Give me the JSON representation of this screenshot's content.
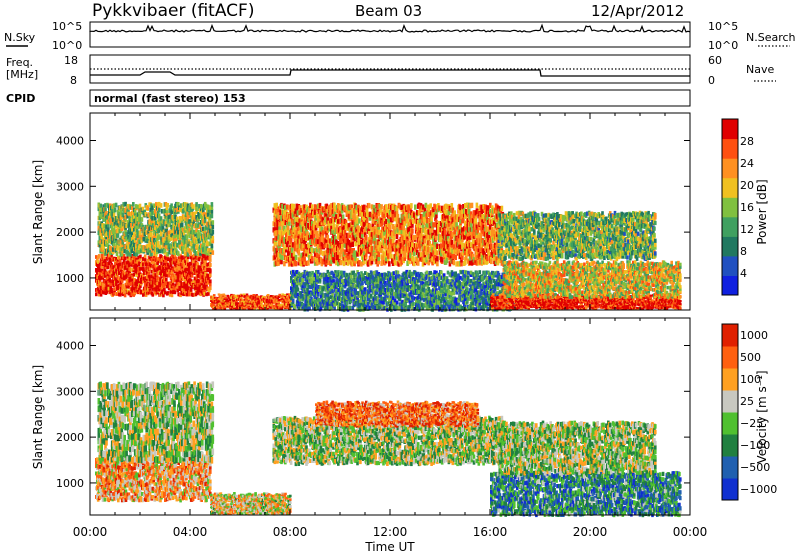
{
  "header": {
    "title": "Pykkvibaer (fitACF)",
    "beam": "Beam 03",
    "date": "12/Apr/2012"
  },
  "noise_panel": {
    "left_label": "N.Sky",
    "left_ticks": [
      "10^5",
      "10^0"
    ],
    "right_label": "N.Search",
    "right_ticks": [
      "10^5",
      "10^0"
    ]
  },
  "freq_panel": {
    "left_label_1": "Freq.",
    "left_label_2": "[MHz]",
    "left_ticks": [
      "18",
      "8"
    ],
    "right_label": "Nave",
    "right_ticks": [
      "60",
      "0"
    ]
  },
  "cpid": {
    "label": "CPID",
    "value": "normal (fast stereo) 153"
  },
  "colors": {
    "power_scale": [
      "#1020e0",
      "#2050c0",
      "#207860",
      "#40a060",
      "#80c040",
      "#f0c020",
      "#ff9020",
      "#ff5010",
      "#e00000"
    ],
    "velocity_scale": [
      "#1030d0",
      "#2060b0",
      "#208040",
      "#50c030",
      "#c8c8c0",
      "#ffa020",
      "#ff6010",
      "#e02000"
    ]
  },
  "chart_data": [
    {
      "type": "heatmap",
      "name": "power",
      "xlabel": "",
      "ylabel": "Slant Range [km]",
      "x_ticks": [
        "00:00",
        "04:00",
        "08:00",
        "12:00",
        "16:00",
        "20:00",
        "00:00"
      ],
      "y_ticks": [
        "1000",
        "2000",
        "3000",
        "4000"
      ],
      "ylim": [
        300,
        4600
      ],
      "colorbar_label": "Power [dB]",
      "colorbar_ticks": [
        "4",
        "8",
        "12",
        "16",
        "20",
        "24",
        "28"
      ],
      "regions": [
        {
          "t0": 0.2,
          "t1": 4.8,
          "r0": 700,
          "r1": 1550,
          "level": 0.9
        },
        {
          "t0": 0.3,
          "t1": 4.9,
          "r0": 1600,
          "r1": 2700,
          "level": 0.5
        },
        {
          "t0": 4.8,
          "t1": 8.0,
          "r0": 300,
          "r1": 650,
          "level": 0.85
        },
        {
          "t0": 7.3,
          "t1": 16.5,
          "r0": 1400,
          "r1": 2700,
          "level": 0.75
        },
        {
          "t0": 8.0,
          "t1": 17.0,
          "r0": 300,
          "r1": 1200,
          "level": 0.3
        },
        {
          "t0": 16.0,
          "t1": 23.6,
          "r0": 300,
          "r1": 650,
          "level": 0.95
        },
        {
          "t0": 16.5,
          "t1": 23.6,
          "r0": 650,
          "r1": 1400,
          "level": 0.6
        },
        {
          "t0": 16.3,
          "t1": 22.6,
          "r0": 1500,
          "r1": 2500,
          "level": 0.45
        }
      ]
    },
    {
      "type": "heatmap",
      "name": "velocity",
      "xlabel": "Time UT",
      "ylabel": "Slant Range [km]",
      "x_ticks": [
        "00:00",
        "04:00",
        "08:00",
        "12:00",
        "16:00",
        "20:00",
        "00:00"
      ],
      "y_ticks": [
        "1000",
        "2000",
        "3000",
        "4000"
      ],
      "ylim": [
        300,
        4600
      ],
      "colorbar_label": "Velocity [m s⁻¹]",
      "colorbar_ticks": [
        "1000",
        "500",
        "100",
        "25",
        "−25",
        "−100",
        "−500",
        "−1000"
      ],
      "regions": [
        {
          "t0": 0.2,
          "t1": 4.8,
          "r0": 700,
          "r1": 1600,
          "level": 0.7
        },
        {
          "t0": 0.3,
          "t1": 4.9,
          "r0": 1600,
          "r1": 3300,
          "level": 0.5
        },
        {
          "t0": 4.8,
          "t1": 8.0,
          "r0": 300,
          "r1": 800,
          "level": 0.6
        },
        {
          "t0": 7.3,
          "t1": 16.5,
          "r0": 1500,
          "r1": 2500,
          "level": 0.5
        },
        {
          "t0": 9.0,
          "t1": 15.5,
          "r0": 2300,
          "r1": 2800,
          "level": 0.8
        },
        {
          "t0": 16.0,
          "t1": 23.6,
          "r0": 300,
          "r1": 1300,
          "level": 0.3
        },
        {
          "t0": 16.3,
          "t1": 22.6,
          "r0": 1300,
          "r1": 2400,
          "level": 0.5
        }
      ]
    }
  ]
}
